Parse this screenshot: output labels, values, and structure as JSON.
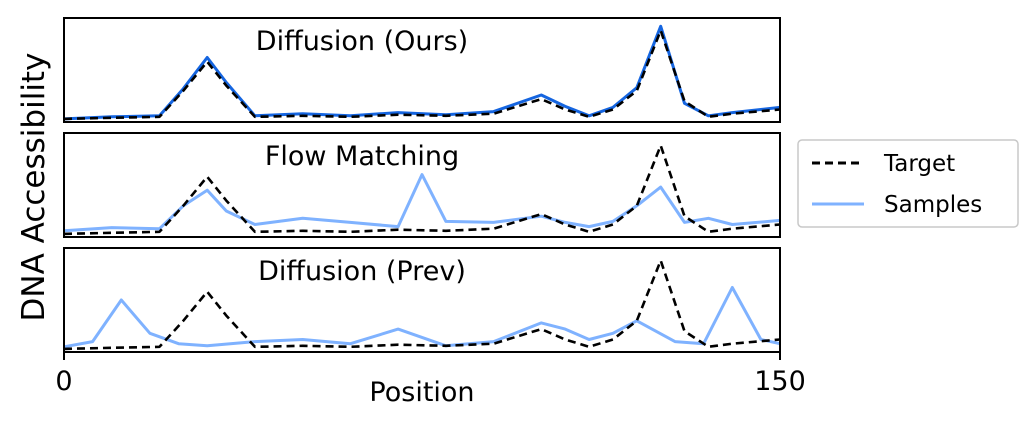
{
  "figure": {
    "ylabel": "DNA Accessibility",
    "xlabel": "Position",
    "x_tick_labels": [
      "0",
      "150"
    ],
    "legend": {
      "placement": "right-center",
      "target_label": "Target",
      "samples_label": "Samples"
    },
    "colors": {
      "target": "#000000",
      "sample_dark": "#1565e0",
      "sample_light": "#7fb2ff"
    }
  },
  "chart_data": [
    {
      "type": "line",
      "title": "Diffusion (Ours)",
      "xlim": [
        0,
        150
      ],
      "ylim": [
        0,
        1
      ],
      "grid": false,
      "series": [
        {
          "name": "Target",
          "style": "dashed",
          "x": [
            0,
            10,
            20,
            25,
            30,
            34,
            40,
            50,
            60,
            70,
            80,
            90,
            100,
            105,
            110,
            115,
            120,
            125,
            130,
            135,
            140,
            150
          ],
          "y": [
            0.03,
            0.04,
            0.05,
            0.3,
            0.58,
            0.35,
            0.05,
            0.06,
            0.05,
            0.07,
            0.06,
            0.08,
            0.22,
            0.12,
            0.05,
            0.12,
            0.3,
            0.88,
            0.2,
            0.05,
            0.08,
            0.12
          ]
        },
        {
          "name": "Samples",
          "style": "solid",
          "x": [
            0,
            10,
            20,
            25,
            30,
            34,
            40,
            50,
            60,
            70,
            80,
            90,
            100,
            105,
            110,
            115,
            120,
            125,
            130,
            135,
            140,
            150
          ],
          "y": [
            0.03,
            0.05,
            0.06,
            0.32,
            0.62,
            0.38,
            0.06,
            0.08,
            0.06,
            0.09,
            0.07,
            0.1,
            0.26,
            0.15,
            0.06,
            0.14,
            0.33,
            0.92,
            0.18,
            0.06,
            0.09,
            0.14
          ]
        }
      ]
    },
    {
      "type": "line",
      "title": "Flow Matching",
      "xlim": [
        0,
        150
      ],
      "ylim": [
        0,
        1
      ],
      "grid": false,
      "series": [
        {
          "name": "Target",
          "style": "dashed",
          "x": [
            0,
            10,
            20,
            25,
            30,
            34,
            40,
            50,
            60,
            70,
            80,
            90,
            100,
            105,
            110,
            115,
            120,
            125,
            130,
            135,
            140,
            150
          ],
          "y": [
            0.03,
            0.04,
            0.05,
            0.3,
            0.58,
            0.35,
            0.05,
            0.06,
            0.05,
            0.07,
            0.06,
            0.08,
            0.22,
            0.12,
            0.05,
            0.12,
            0.3,
            0.88,
            0.2,
            0.05,
            0.08,
            0.12
          ]
        },
        {
          "name": "Samples",
          "style": "solid",
          "x": [
            0,
            10,
            20,
            25,
            30,
            34,
            40,
            50,
            60,
            70,
            75,
            80,
            90,
            100,
            105,
            110,
            115,
            120,
            125,
            130,
            135,
            140,
            150
          ],
          "y": [
            0.06,
            0.09,
            0.08,
            0.3,
            0.45,
            0.25,
            0.12,
            0.18,
            0.14,
            0.1,
            0.6,
            0.15,
            0.14,
            0.2,
            0.14,
            0.1,
            0.15,
            0.3,
            0.48,
            0.14,
            0.18,
            0.12,
            0.16
          ]
        }
      ]
    },
    {
      "type": "line",
      "title": "Diffusion (Prev)",
      "xlim": [
        0,
        150
      ],
      "ylim": [
        0,
        1
      ],
      "grid": false,
      "series": [
        {
          "name": "Target",
          "style": "dashed",
          "x": [
            0,
            10,
            20,
            25,
            30,
            34,
            40,
            50,
            60,
            70,
            80,
            90,
            100,
            105,
            110,
            115,
            120,
            125,
            130,
            135,
            140,
            150
          ],
          "y": [
            0.03,
            0.04,
            0.05,
            0.3,
            0.58,
            0.35,
            0.05,
            0.06,
            0.05,
            0.07,
            0.06,
            0.08,
            0.22,
            0.12,
            0.05,
            0.12,
            0.3,
            0.88,
            0.2,
            0.05,
            0.08,
            0.12
          ]
        },
        {
          "name": "Samples",
          "style": "solid",
          "x": [
            0,
            6,
            12,
            18,
            24,
            30,
            40,
            50,
            60,
            70,
            80,
            90,
            100,
            105,
            110,
            115,
            120,
            128,
            134,
            140,
            146,
            150
          ],
          "y": [
            0.05,
            0.1,
            0.5,
            0.18,
            0.08,
            0.06,
            0.1,
            0.12,
            0.08,
            0.22,
            0.06,
            0.1,
            0.28,
            0.22,
            0.12,
            0.18,
            0.3,
            0.1,
            0.08,
            0.62,
            0.12,
            0.08
          ]
        }
      ]
    }
  ]
}
